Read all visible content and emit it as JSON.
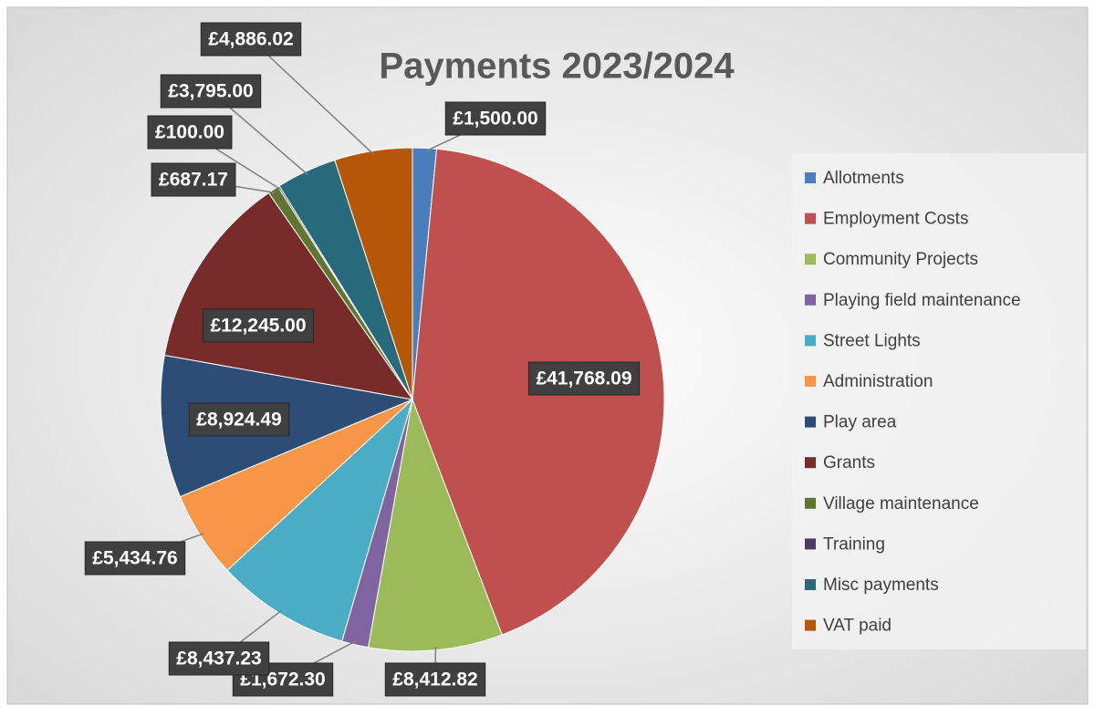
{
  "chart_data": {
    "type": "pie",
    "title": "Payments 2023/2024",
    "categories": [
      "Allotments",
      "Employment Costs",
      "Community Projects",
      "Playing field maintenance",
      "Street Lights",
      "Administration",
      "Play area",
      "Grants",
      "Village maintenance",
      "Training",
      "Misc payments",
      "VAT paid"
    ],
    "values": [
      1500.0,
      41768.09,
      8412.82,
      1672.3,
      8437.23,
      5434.76,
      8924.49,
      12245.0,
      687.17,
      100.0,
      3795.0,
      4886.02
    ],
    "value_labels": [
      "£1,500.00",
      "£41,768.09",
      "£8,412.82",
      "£1,672.30",
      "£8,437.23",
      "£5,434.76",
      "£8,924.49",
      "£12,245.00",
      "£687.17",
      "£100.00",
      "£3,795.00",
      "£4,886.02"
    ],
    "colors": [
      "#4a7ebb",
      "#c0504d",
      "#9bbb59",
      "#8064a2",
      "#4bacc6",
      "#f79646",
      "#2c4d75",
      "#772c2a",
      "#5f7530",
      "#4d3b62",
      "#276a7c",
      "#b65708"
    ],
    "legend": "right"
  }
}
